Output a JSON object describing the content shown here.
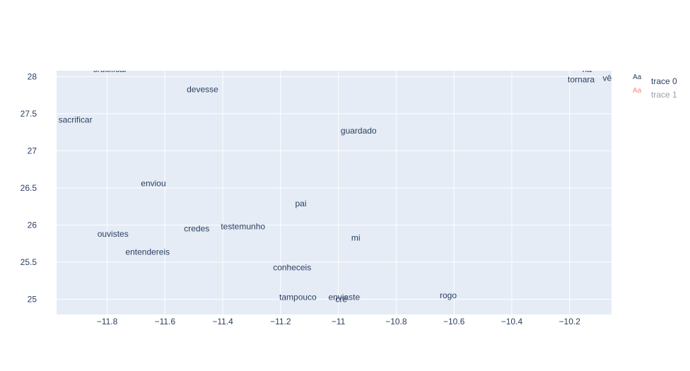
{
  "chart_data": {
    "type": "scatter",
    "mode": "text",
    "xlim": [
      -11.975,
      -10.055
    ],
    "ylim": [
      24.795,
      28.08
    ],
    "x_ticks": [
      -11.8,
      -11.6,
      -11.4,
      -11.2,
      -11,
      -10.8,
      -10.6,
      -10.4,
      -10.2
    ],
    "x_tick_labels": [
      "−11.8",
      "−11.6",
      "−11.4",
      "−11.2",
      "−11",
      "−10.8",
      "−10.6",
      "−10.4",
      "−10.2"
    ],
    "y_ticks": [
      25,
      25.5,
      26,
      26.5,
      27,
      27.5,
      28
    ],
    "y_tick_labels": [
      "25",
      "25.5",
      "26",
      "26.5",
      "27",
      "27.5",
      "28"
    ],
    "grid": true,
    "legend_position": "top-right",
    "series": [
      {
        "name": "trace 0",
        "color": "#2a3f5f",
        "points": [
          {
            "x": -11.79,
            "y": 28.1,
            "label": "crucificar"
          },
          {
            "x": -11.47,
            "y": 27.83,
            "label": "devesse"
          },
          {
            "x": -11.91,
            "y": 27.42,
            "label": "sacrificar"
          },
          {
            "x": -10.93,
            "y": 27.27,
            "label": "guardado"
          },
          {
            "x": -11.64,
            "y": 26.56,
            "label": "enviou"
          },
          {
            "x": -11.13,
            "y": 26.29,
            "label": "pai"
          },
          {
            "x": -11.49,
            "y": 25.95,
            "label": "credes"
          },
          {
            "x": -11.33,
            "y": 25.98,
            "label": "testemunho"
          },
          {
            "x": -11.78,
            "y": 25.88,
            "label": "ouvistes"
          },
          {
            "x": -10.94,
            "y": 25.83,
            "label": "mi"
          },
          {
            "x": -11.66,
            "y": 25.64,
            "label": "entendereis"
          },
          {
            "x": -11.16,
            "y": 25.43,
            "label": "conheceis"
          },
          {
            "x": -11.14,
            "y": 25.03,
            "label": "tampouco"
          },
          {
            "x": -10.98,
            "y": 25.03,
            "label": "enviaste"
          },
          {
            "x": -10.99,
            "y": 25.0,
            "label": "crê"
          },
          {
            "x": -10.62,
            "y": 25.05,
            "label": "rogo"
          },
          {
            "x": -10.14,
            "y": 28.1,
            "label": "rla"
          },
          {
            "x": -10.16,
            "y": 27.96,
            "label": "tornara"
          },
          {
            "x": -10.07,
            "y": 27.98,
            "label": "vê"
          }
        ]
      },
      {
        "name": "trace 1",
        "color": "#ef553b",
        "points": []
      }
    ]
  },
  "legend": {
    "items": [
      {
        "swatch": "Aa",
        "label": "trace 0",
        "color": "#2a3f5f"
      },
      {
        "swatch": "Aa",
        "label": "trace 1",
        "color": "#ef553b"
      }
    ]
  }
}
